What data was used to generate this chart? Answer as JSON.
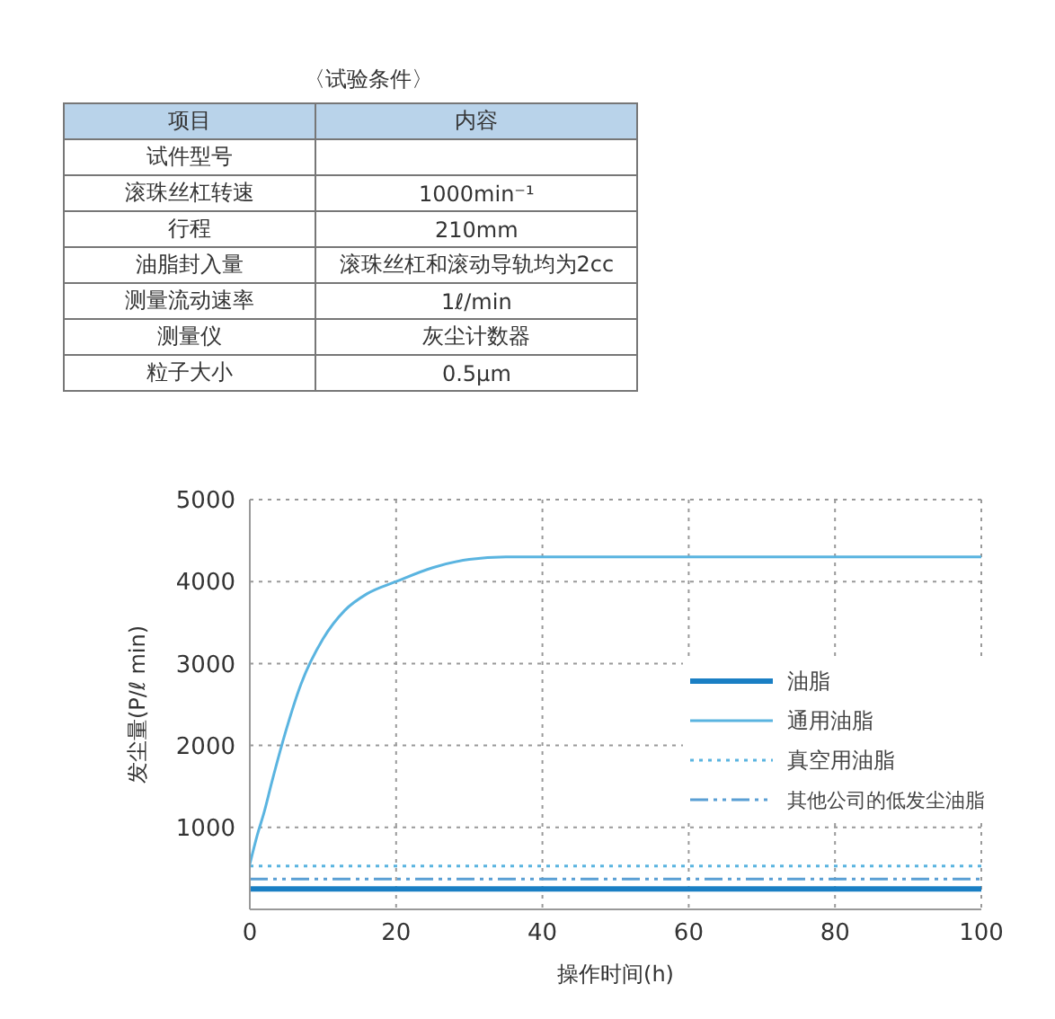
{
  "chart_data": [
    {
      "type": "other",
      "title": "〈试验条件〉",
      "annotations": [
        "项目",
        "内容",
        "试件型号",
        null,
        "滚珠丝杠转速",
        "1000min⁻¹",
        "行程",
        "210mm",
        "油脂封入量",
        "滚珠丝杠和滚动导轨均为2cc",
        "测量流动速率",
        "1ℓ/min",
        "测量仪",
        "灰尘计数器",
        "粒子大小",
        "0.5μm"
      ]
    },
    {
      "type": "line",
      "xlabel": "操作时间(h)",
      "ylabel": "发尘量(P/ℓ min)",
      "xlim": [
        0,
        100
      ],
      "ylim": [
        0,
        5000
      ],
      "xticks": [
        0,
        20,
        40,
        60,
        80,
        100
      ],
      "yticks": [
        1000,
        2000,
        3000,
        4000,
        5000
      ],
      "grid": true,
      "legend": "right",
      "marker": "none",
      "series": [
        {
          "name": "油脂",
          "color": "#1a7fc4",
          "line_style": "solid",
          "x": [
            0,
            100
          ],
          "values": [
            250,
            250
          ]
        },
        {
          "name": "通用油脂",
          "color": "#5ab4e0",
          "line_style": "solid",
          "x": [
            0,
            1,
            2,
            3,
            5,
            7,
            10,
            13,
            16,
            20,
            25,
            30,
            35,
            40,
            100
          ],
          "values": [
            550,
            900,
            1200,
            1550,
            2200,
            2750,
            3300,
            3650,
            3850,
            4000,
            4170,
            4270,
            4300,
            4300,
            4300
          ]
        },
        {
          "name": "真空用油脂",
          "color": "#5ab4e0",
          "line_style": "dotted",
          "x": [
            0,
            100
          ],
          "values": [
            530,
            530
          ]
        },
        {
          "name": "其他公司的低发尘油脂",
          "color": "#5a9fd4",
          "line_style": "dashdot",
          "x": [
            0,
            100
          ],
          "values": [
            370,
            370
          ]
        }
      ]
    }
  ]
}
